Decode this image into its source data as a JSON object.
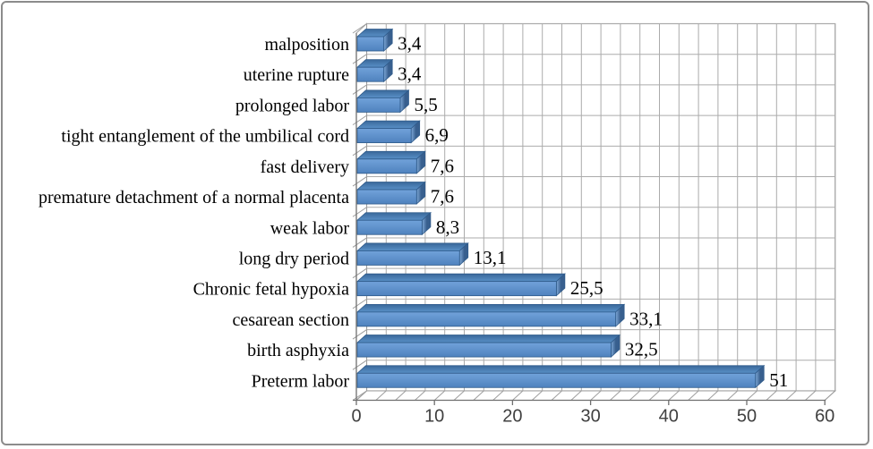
{
  "chart_data": {
    "type": "bar",
    "orientation": "horizontal",
    "style": "excel-3d",
    "title": "",
    "xlabel": "",
    "ylabel": "",
    "legend": false,
    "grid": true,
    "xlim": [
      0,
      60
    ],
    "x_minor_step": 2.5,
    "x_ticks": [
      "0",
      "10",
      "20",
      "30",
      "40",
      "50",
      "60"
    ],
    "x_tick_values": [
      0,
      10,
      20,
      30,
      40,
      50,
      60
    ],
    "categories": [
      "malposition",
      "uterine rupture",
      "prolonged labor",
      "tight entanglement of the umbilical cord",
      "fast delivery",
      "premature detachment of a normal placenta",
      "weak labor",
      "long dry period",
      "Chronic fetal hypoxia",
      "cesarean section",
      "birth asphyxia",
      "Preterm labor"
    ],
    "values": [
      3.4,
      3.4,
      5.5,
      6.9,
      7.6,
      7.6,
      8.3,
      13.1,
      25.5,
      33.1,
      32.5,
      51
    ],
    "value_labels": [
      "3,4",
      "3,4",
      "5,5",
      "6,9",
      "7,6",
      "7,6",
      "8,3",
      "13,1",
      "25,5",
      "33,1",
      "32,5",
      "51"
    ],
    "colors": {
      "bar_face_light": "#71A2DA",
      "bar_face_dark": "#4F82BE",
      "bar_top_dark": "#3A689A",
      "bar_top_light": "#5990C7",
      "bar_cap_light": "#7FA9D8",
      "bar_cap_dark": "#385F8E",
      "bar_stroke": "#2F5B8B",
      "grid_line": "#ABABAB",
      "wall_line": "#9E9E9E",
      "axis_line": "#6F6F6F",
      "label_color": "#000000",
      "tick_label_color": "#404040",
      "frame_border": "#8C8C8C",
      "background": "#FFFFFF"
    }
  }
}
